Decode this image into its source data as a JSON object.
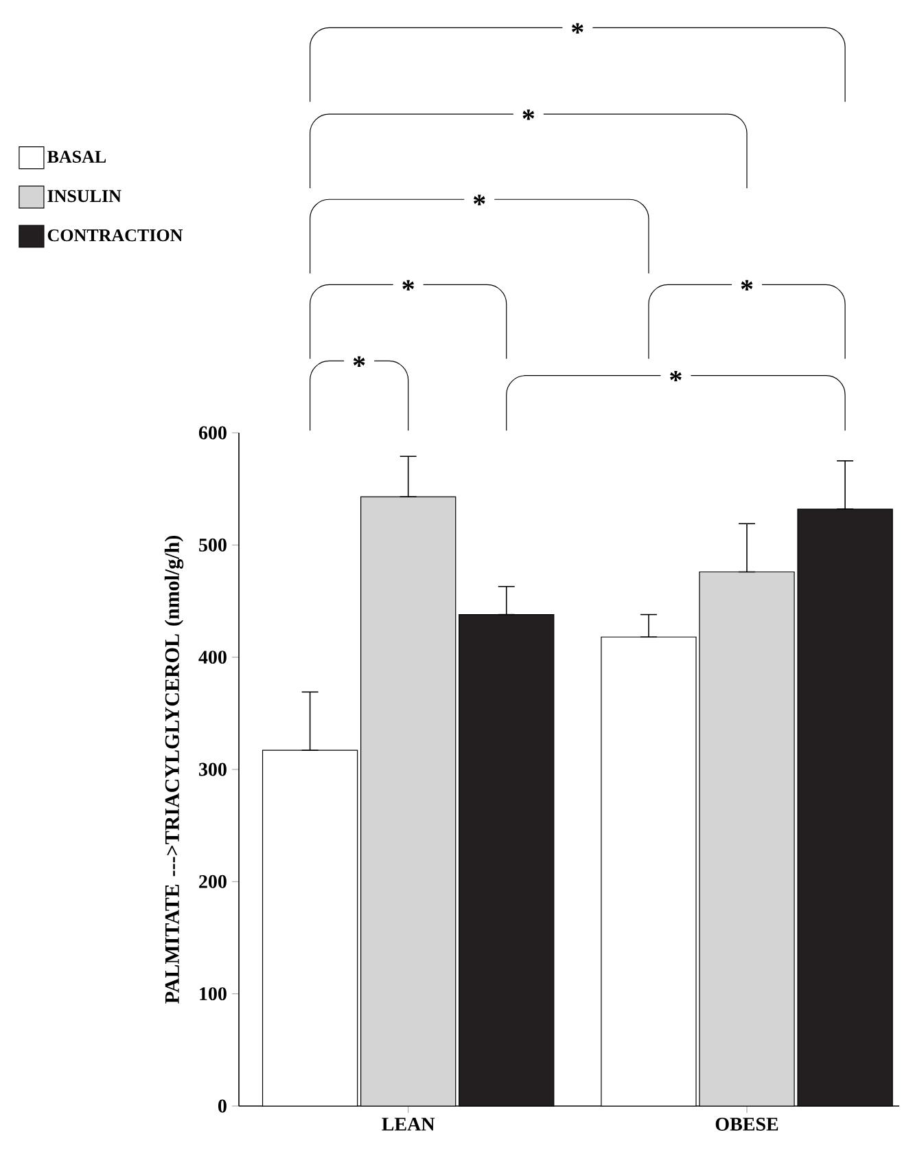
{
  "chart_data": {
    "type": "bar",
    "ylabel": "PALMITATE --->TRIACYLGLYCEROL (nmol/g/h)",
    "categories": [
      "LEAN",
      "OBESE"
    ],
    "series": [
      {
        "name": "BASAL",
        "color": "#ffffff",
        "values": [
          317,
          418
        ],
        "errors": [
          [
            317,
            369
          ],
          [
            418,
            438
          ]
        ]
      },
      {
        "name": "INSULIN",
        "color": "#d4d4d4",
        "values": [
          543,
          476
        ],
        "errors": [
          [
            543,
            579
          ],
          [
            476,
            519
          ]
        ]
      },
      {
        "name": "CONTRACTION",
        "color": "#231f20",
        "values": [
          438,
          532
        ],
        "errors": [
          [
            438,
            463
          ],
          [
            532,
            575
          ]
        ]
      }
    ],
    "ylim": [
      0,
      600
    ],
    "yticks": [
      0,
      100,
      200,
      300,
      400,
      500,
      600
    ],
    "grid": false,
    "legend": "top left",
    "annotations": [
      "*",
      "*",
      "*",
      "*",
      "*",
      "*",
      "*"
    ]
  }
}
